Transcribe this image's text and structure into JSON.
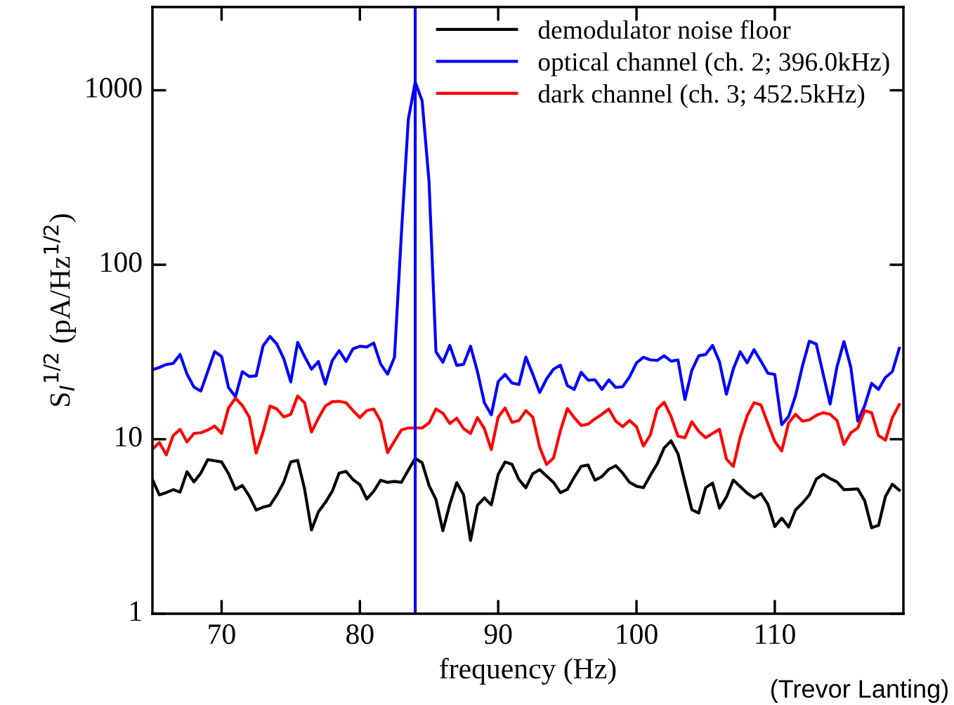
{
  "chart_data": {
    "type": "line",
    "xlabel": "frequency (Hz)",
    "ylabel": "S$_{I}$$^{1/2}$ (pA/Hz$^{1/2}$)",
    "x": [
      65,
      65.5,
      66,
      66.5,
      67,
      67.5,
      68,
      68.5,
      69,
      69.5,
      70,
      70.5,
      71,
      71.5,
      72,
      72.5,
      73,
      73.5,
      74,
      74.5,
      75,
      75.5,
      76,
      76.5,
      77,
      77.5,
      78,
      78.5,
      79,
      79.5,
      80,
      80.5,
      81,
      81.5,
      82,
      82.5,
      83,
      83.5,
      84,
      84.5,
      85,
      85.5,
      86,
      86.5,
      87,
      87.5,
      88,
      88.5,
      89,
      89.5,
      90,
      90.5,
      91,
      91.5,
      92,
      92.5,
      93,
      93.5,
      94,
      94.5,
      95,
      95.5,
      96,
      96.5,
      97,
      97.5,
      98,
      98.5,
      99,
      99.5,
      100,
      100.5,
      101,
      101.5,
      102,
      102.5,
      103,
      103.5,
      104,
      104.5,
      105,
      105.5,
      106,
      106.5,
      107,
      107.5,
      108,
      108.5,
      109,
      109.5,
      110,
      110.5,
      111,
      111.5,
      112,
      112.5,
      113,
      113.5,
      114,
      114.5,
      115,
      115.5,
      116,
      116.5,
      117,
      117.5,
      118,
      118.5,
      119
    ],
    "series": [
      {
        "name": "demodulator noise floor",
        "color": "#000000",
        "values": [
          5.87,
          4.8,
          4.95,
          5.14,
          4.98,
          6.51,
          5.69,
          6.4,
          7.64,
          7.52,
          7.41,
          6.35,
          5.16,
          5.43,
          4.73,
          3.93,
          4.08,
          4.18,
          4.8,
          5.69,
          7.41,
          7.57,
          5.19,
          3.02,
          3.83,
          4.34,
          5.03,
          6.4,
          6.54,
          5.87,
          5.49,
          4.54,
          5.03,
          5.82,
          5.66,
          5.73,
          5.66,
          6.65,
          7.76,
          7.34,
          5.43,
          4.51,
          2.99,
          4.24,
          5.64,
          4.8,
          2.63,
          4.18,
          4.61,
          4.2,
          6.29,
          7.41,
          7.18,
          5.87,
          5.27,
          6.35,
          6.69,
          6.15,
          5.66,
          4.94,
          5.16,
          6.06,
          7.0,
          7.11,
          5.82,
          6.11,
          6.73,
          7.05,
          6.4,
          5.66,
          5.38,
          5.28,
          6.21,
          7.22,
          8.92,
          9.79,
          8.26,
          5.69,
          3.95,
          3.78,
          5.27,
          5.61,
          4.03,
          4.66,
          5.84,
          5.35,
          4.91,
          4.61,
          4.88,
          4.24,
          3.16,
          3.53,
          3.14,
          3.93,
          4.31,
          4.8,
          5.91,
          6.29,
          5.96,
          5.69,
          5.14,
          5.16,
          5.19,
          4.44,
          3.11,
          3.21,
          4.7,
          5.52,
          5.11
        ]
      },
      {
        "name": "optical channel (ch. 2; 396.0kHz)",
        "color": "#0000ff",
        "values": [
          25.0,
          25.8,
          26.8,
          27.2,
          30.6,
          23.6,
          19.9,
          18.9,
          24.5,
          31.8,
          29.8,
          19.8,
          17.5,
          24.4,
          22.9,
          23.1,
          34.3,
          38.8,
          35.1,
          28.9,
          21.3,
          35.9,
          29.8,
          25.2,
          27.9,
          20.7,
          28.2,
          32.2,
          27.9,
          33.0,
          34.1,
          33.8,
          35.6,
          27.0,
          23.6,
          29.5,
          150,
          679,
          1114,
          870,
          299,
          31.7,
          27.6,
          34.5,
          26.5,
          26.9,
          34.1,
          24.4,
          16.2,
          13.8,
          21.4,
          23.5,
          21.0,
          20.6,
          29.6,
          23.6,
          18.5,
          22.2,
          25.2,
          26.6,
          20.3,
          19.3,
          24.2,
          21.8,
          21.9,
          19.3,
          21.9,
          19.8,
          20.0,
          22.8,
          27.4,
          29.5,
          28.5,
          28.3,
          30.1,
          28.0,
          28.5,
          16.9,
          24.8,
          30.1,
          30.6,
          34.5,
          27.8,
          18.1,
          25.3,
          31.7,
          27.4,
          32.6,
          28.0,
          23.9,
          23.5,
          12.1,
          13.5,
          17.8,
          26.3,
          36.5,
          35.1,
          23.6,
          15.9,
          26.1,
          36.3,
          25.8,
          12.7,
          15.6,
          20.9,
          19.3,
          22.6,
          24.4,
          33.2
        ]
      },
      {
        "name": "dark channel (ch. 3; 452.5kHz)",
        "color": "#ff0000",
        "values": [
          8.78,
          9.58,
          8.13,
          10.5,
          11.4,
          9.64,
          10.8,
          10.9,
          11.3,
          11.9,
          10.8,
          15.1,
          17.2,
          15.6,
          13.4,
          8.33,
          11.0,
          15.5,
          14.9,
          13.4,
          13.9,
          17.7,
          16.2,
          11.0,
          13.2,
          15.5,
          16.4,
          16.5,
          16.2,
          14.6,
          13.3,
          14.6,
          14.9,
          12.7,
          8.38,
          9.75,
          11.3,
          11.6,
          11.6,
          11.6,
          12.4,
          14.9,
          14.1,
          12.3,
          13.2,
          11.5,
          10.8,
          13.3,
          11.5,
          8.72,
          13.4,
          15.1,
          12.5,
          12.8,
          14.6,
          13.4,
          9.0,
          7.16,
          7.81,
          11.2,
          15.0,
          13.3,
          12.0,
          12.2,
          13.1,
          13.9,
          14.9,
          12.7,
          11.8,
          12.8,
          11.8,
          9.14,
          10.6,
          14.9,
          16.3,
          13.5,
          10.4,
          10.2,
          12.6,
          11.1,
          10.2,
          10.8,
          11.4,
          7.71,
          6.98,
          10.3,
          13.6,
          16.2,
          15.7,
          12.3,
          9.7,
          8.57,
          12.4,
          13.9,
          12.7,
          12.9,
          13.7,
          14.2,
          13.9,
          12.8,
          9.34,
          10.9,
          11.6,
          14.6,
          14.2,
          10.5,
          9.88,
          13.3,
          15.8
        ]
      }
    ],
    "log": "y",
    "xlim": [
      65,
      119.3
    ],
    "xticks": [
      70,
      80,
      90,
      100,
      110
    ],
    "ylim": [
      1,
      3000
    ],
    "yticks": [
      1,
      10,
      100,
      1000
    ],
    "ref_lines": [
      {
        "axis": "x",
        "value": 84,
        "color": "#0000ff"
      }
    ],
    "legend": "top right",
    "grid": false,
    "annotations": [
      "(Trevor Lanting)"
    ]
  }
}
